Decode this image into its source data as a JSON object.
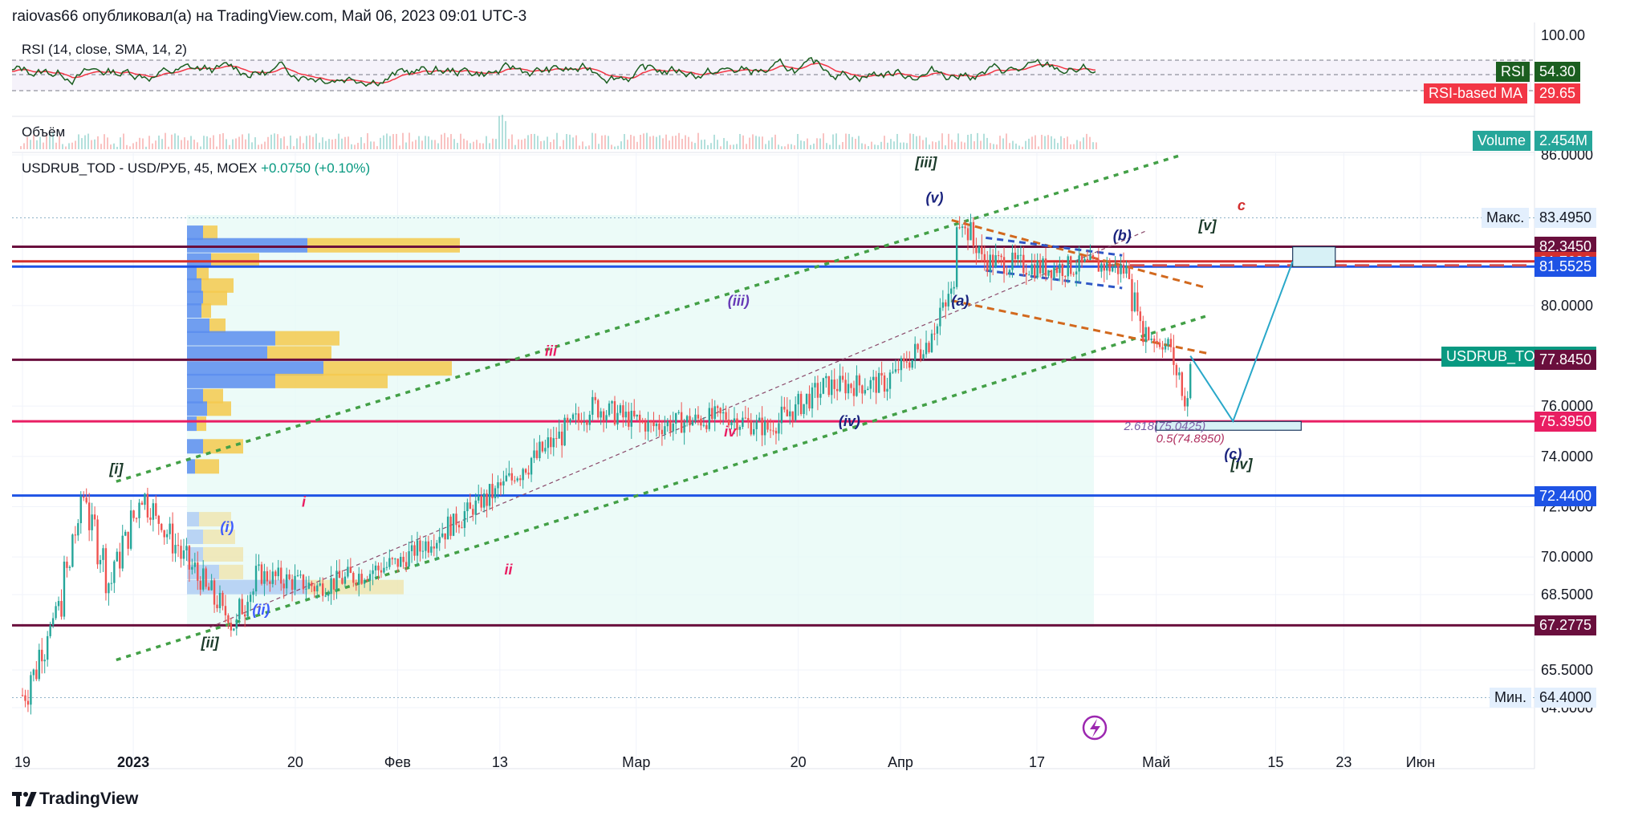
{
  "header": {
    "published_by": "raiovas66 опубликовал(а) на TradingView.com, Май 06, 2023 09:01 UTC-3"
  },
  "brand": {
    "name": "TradingView",
    "logo_icon": "tradingview-logo-icon"
  },
  "rsi_pane": {
    "title": "RSI (14, close, SMA, 14, 2)",
    "top_level": "100.00",
    "tags": [
      {
        "name": "RSI",
        "value": "54.30",
        "color": "#1b5e20"
      },
      {
        "name": "RSI-based MA",
        "value": "29.65",
        "color": "#f23645"
      }
    ]
  },
  "volume_pane": {
    "title": "Объём",
    "tag": {
      "name": "Volume",
      "value": "2.454M",
      "color": "#26a69a"
    }
  },
  "main_pane": {
    "symbol": "USDRUB_TOD - USD/РУБ, 45, MOEX",
    "change": "+0.0750 (+0.10%)"
  },
  "chart_data": {
    "type": "candlestick",
    "symbol": "USDRUB_TOD",
    "interval": "45",
    "y_axis_labels": [
      "86.0000",
      "80.0000",
      "76.0000",
      "74.0000",
      "72.0000",
      "70.0000",
      "68.5000",
      "65.5000",
      "64.0000"
    ],
    "ylim": [
      63.4,
      86.2
    ],
    "x_axis_labels": [
      "19",
      "2023",
      "20",
      "Фев",
      "13",
      "Мар",
      "20",
      "Апр",
      "17",
      "Май",
      "15",
      "23",
      "Июн"
    ],
    "price_tags": [
      {
        "label": "Макс.",
        "value": "83.4950",
        "bg": "#e3effd",
        "fg": "#131722",
        "kind": "max"
      },
      {
        "label": "",
        "value": "82.3450",
        "bg": "#6a0f3d",
        "fg": "#ffffff",
        "kind": "line"
      },
      {
        "label": "",
        "value": "81.7600",
        "bg": "#d32f2f",
        "fg": "#ffffff",
        "kind": "line"
      },
      {
        "label": "",
        "value": "81.5525",
        "bg": "#1e53e5",
        "fg": "#ffffff",
        "kind": "line"
      },
      {
        "label": "USDRUB_TOD",
        "value": "78.0000",
        "bg": "#089981",
        "fg": "#ffffff",
        "kind": "last"
      },
      {
        "label": "",
        "value": "77.8450",
        "bg": "#6a0f3d",
        "fg": "#ffffff",
        "kind": "line"
      },
      {
        "label": "",
        "value": "75.3950",
        "bg": "#e91e63",
        "fg": "#ffffff",
        "kind": "line"
      },
      {
        "label": "",
        "value": "72.4400",
        "bg": "#1e53e5",
        "fg": "#ffffff",
        "kind": "line"
      },
      {
        "label": "",
        "value": "67.2775",
        "bg": "#6a0f3d",
        "fg": "#ffffff",
        "kind": "line"
      },
      {
        "label": "Мин.",
        "value": "64.4000",
        "bg": "#e3effd",
        "fg": "#131722",
        "kind": "min"
      }
    ],
    "horizontal_levels": [
      {
        "value": 82.345,
        "color": "#6a0f3d"
      },
      {
        "value": 81.76,
        "color": "#d32f2f"
      },
      {
        "value": 81.5525,
        "color": "#1e53e5"
      },
      {
        "value": 77.845,
        "color": "#6a0f3d"
      },
      {
        "value": 75.395,
        "color": "#e91e63"
      },
      {
        "value": 72.44,
        "color": "#1e53e5"
      },
      {
        "value": 67.2775,
        "color": "#6a0f3d"
      }
    ],
    "price_path": [
      {
        "date": "2022-12-16",
        "close": 64.5
      },
      {
        "date": "2022-12-20",
        "close": 68.0
      },
      {
        "date": "2022-12-23",
        "close": 72.4
      },
      {
        "date": "2022-12-26",
        "close": 69.0
      },
      {
        "date": "2022-12-30",
        "close": 72.4
      },
      {
        "date": "2023-01-04",
        "close": 70.0
      },
      {
        "date": "2023-01-10",
        "close": 67.3
      },
      {
        "date": "2023-01-13",
        "close": 69.3
      },
      {
        "date": "2023-01-20",
        "close": 68.8
      },
      {
        "date": "2023-01-30",
        "close": 69.8
      },
      {
        "date": "2023-02-10",
        "close": 72.5
      },
      {
        "date": "2023-02-17",
        "close": 74.5
      },
      {
        "date": "2023-02-22",
        "close": 76.0
      },
      {
        "date": "2023-03-01",
        "close": 75.2
      },
      {
        "date": "2023-03-10",
        "close": 75.6
      },
      {
        "date": "2023-03-15",
        "close": 75.1
      },
      {
        "date": "2023-03-22",
        "close": 76.8
      },
      {
        "date": "2023-03-29",
        "close": 76.9
      },
      {
        "date": "2023-04-03",
        "close": 78.5
      },
      {
        "date": "2023-04-06",
        "close": 80.5
      },
      {
        "date": "2023-04-07",
        "close": 83.5
      },
      {
        "date": "2023-04-10",
        "close": 81.8
      },
      {
        "date": "2023-04-17",
        "close": 81.5
      },
      {
        "date": "2023-04-24",
        "close": 81.6
      },
      {
        "date": "2023-04-27",
        "close": 81.4
      },
      {
        "date": "2023-04-29",
        "close": 79.0
      },
      {
        "date": "2023-05-02",
        "close": 78.4
      },
      {
        "date": "2023-05-04",
        "close": 76.3
      },
      {
        "date": "2023-05-05",
        "close": 78.0
      }
    ],
    "projection": [
      {
        "date": "2023-05-05",
        "value": 78.0
      },
      {
        "date": "2023-05-10",
        "value": 75.4
      },
      {
        "date": "2023-05-17",
        "value": 81.76
      }
    ],
    "annotations": [
      {
        "text": "[i]",
        "date": "2022-12-30",
        "value": 73.3,
        "color": "#1b3a2a"
      },
      {
        "text": "[ii]",
        "date": "2023-01-10",
        "value": 66.4,
        "color": "#1b3a2a"
      },
      {
        "text": "[iii]",
        "date": "2023-04-04",
        "value": 85.5,
        "color": "#1b3a2a"
      },
      {
        "text": "[iv]",
        "date": "2023-05-11",
        "value": 73.5,
        "color": "#1b3a2a"
      },
      {
        "text": "[v]",
        "date": "2023-05-07",
        "value": 83.0,
        "color": "#1b3a2a"
      },
      {
        "text": "(i)",
        "date": "2023-01-12",
        "value": 71.0,
        "color": "#3d5afe"
      },
      {
        "text": "(ii)",
        "date": "2023-01-16",
        "value": 67.7,
        "color": "#3d5afe"
      },
      {
        "text": "(iii)",
        "date": "2023-03-13",
        "value": 80.0,
        "color": "#673ab7"
      },
      {
        "text": "(iv)",
        "date": "2023-03-26",
        "value": 75.2,
        "color": "#1a237e"
      },
      {
        "text": "(v)",
        "date": "2023-04-05",
        "value": 84.1,
        "color": "#1a237e"
      },
      {
        "text": "i",
        "date": "2023-01-21",
        "value": 72.0,
        "color": "#e91e63"
      },
      {
        "text": "ii",
        "date": "2023-02-14",
        "value": 69.3,
        "color": "#e91e63"
      },
      {
        "text": "iii",
        "date": "2023-02-19",
        "value": 78.0,
        "color": "#e91e63"
      },
      {
        "text": "iv",
        "date": "2023-03-12",
        "value": 74.8,
        "color": "#e91e63"
      },
      {
        "text": "(a)",
        "date": "2023-04-08",
        "value": 80.0,
        "color": "#1a237e"
      },
      {
        "text": "(b)",
        "date": "2023-04-27",
        "value": 82.6,
        "color": "#1a237e"
      },
      {
        "text": "(c)",
        "date": "2023-05-10",
        "value": 73.9,
        "color": "#1a237e"
      },
      {
        "text": "c",
        "date": "2023-05-11",
        "value": 83.8,
        "color": "#d32f2f"
      },
      {
        "text": "2.618(75.0425)",
        "date": "2023-05-02",
        "value": 75.04,
        "color": "#7b5ea7"
      },
      {
        "text": "0.5(74.8950)",
        "date": "2023-05-05",
        "value": 74.55,
        "color": "#b03060"
      }
    ],
    "fib_zones": [
      {
        "from_date": "2023-05-01",
        "to_date": "2023-05-18",
        "low": 75.04,
        "high": 75.39
      },
      {
        "from_date": "2023-05-17",
        "to_date": "2023-05-22",
        "low": 81.55,
        "high": 82.34
      }
    ],
    "colors": {
      "up": "#26a69a",
      "down": "#ef5350",
      "rsi": "#1b5e20",
      "rsi_ma": "#f23645"
    },
    "grid": true
  }
}
